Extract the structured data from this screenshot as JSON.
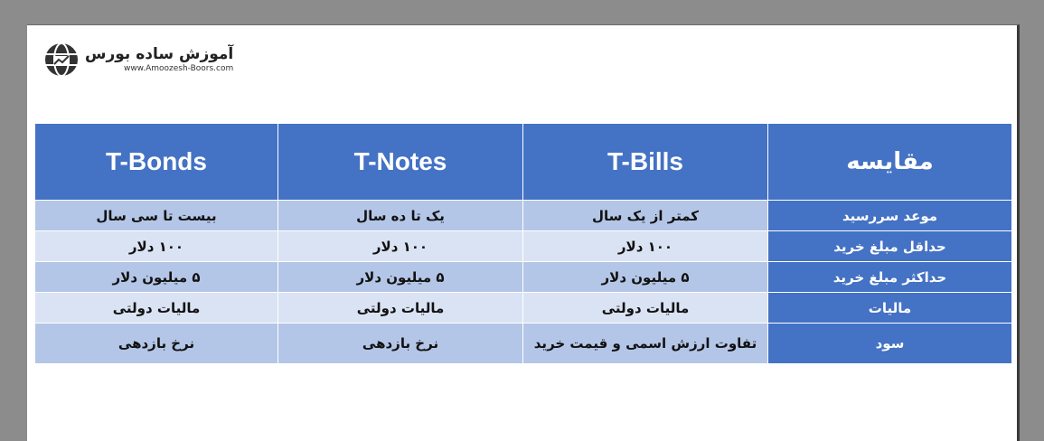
{
  "logo": {
    "brand": "آموزش ساده بورس",
    "url": "www.Amoozesh-Boors.com"
  },
  "table": {
    "headers": [
      "مقایسه",
      "T-Bills",
      "T-Notes",
      "T-Bonds"
    ],
    "rows": [
      [
        "موعد سررسید",
        "کمتر از یک سال",
        "یک تا ده سال",
        "بیست تا سی سال"
      ],
      [
        "حداقل مبلغ خرید",
        "۱۰۰ دلار",
        "۱۰۰ دلار",
        "۱۰۰ دلار"
      ],
      [
        "حداکثر مبلغ خرید",
        "۵ میلیون دلار",
        "۵ میلیون دلار",
        "۵ میلیون دلار"
      ],
      [
        "مالیات",
        "مالیات دولتی",
        "مالیات دولتی",
        "مالیات دولتی"
      ],
      [
        "سود",
        "تفاوت ارزش اسمی و قیمت خرید",
        "نرخ بازدهی",
        "نرخ بازدهی"
      ]
    ]
  },
  "colors": {
    "header": "#4472c4",
    "row_dark": "#b4c6e7",
    "row_light": "#dae3f3"
  }
}
